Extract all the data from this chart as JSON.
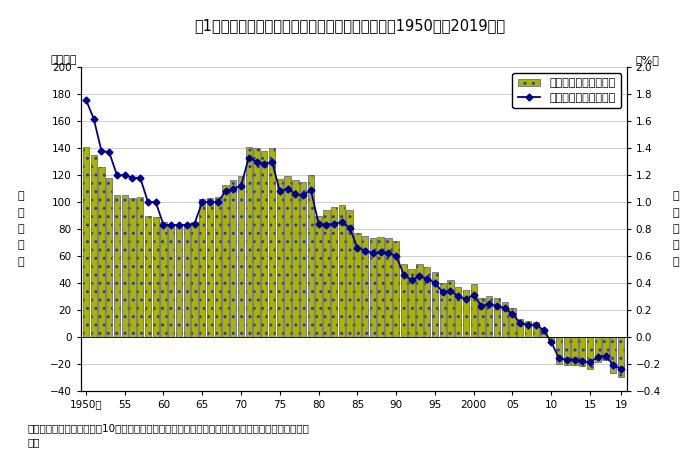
{
  "title": "図1　総人口の人口増加数及び人口増減率の推移（1950年～2019年）",
  "years": [
    1950,
    1951,
    1952,
    1953,
    1954,
    1955,
    1956,
    1957,
    1958,
    1959,
    1960,
    1961,
    1962,
    1963,
    1964,
    1965,
    1966,
    1967,
    1968,
    1969,
    1970,
    1971,
    1972,
    1973,
    1974,
    1975,
    1976,
    1977,
    1978,
    1979,
    1980,
    1981,
    1982,
    1983,
    1984,
    1985,
    1986,
    1987,
    1988,
    1989,
    1990,
    1991,
    1992,
    1993,
    1994,
    1995,
    1996,
    1997,
    1998,
    1999,
    2000,
    2001,
    2002,
    2003,
    2004,
    2005,
    2006,
    2007,
    2008,
    2009,
    2010,
    2011,
    2012,
    2013,
    2014,
    2015,
    2016,
    2017,
    2018,
    2019
  ],
  "bar_values": [
    141,
    135,
    126,
    118,
    105,
    105,
    103,
    104,
    90,
    89,
    85,
    84,
    84,
    84,
    85,
    102,
    103,
    104,
    113,
    116,
    119,
    141,
    140,
    138,
    140,
    117,
    119,
    116,
    115,
    120,
    90,
    94,
    96,
    98,
    94,
    77,
    75,
    73,
    74,
    73,
    71,
    54,
    50,
    54,
    52,
    48,
    40,
    42,
    37,
    35,
    39,
    29,
    30,
    29,
    26,
    21,
    13,
    12,
    11,
    6,
    -5,
    -20,
    -21,
    -21,
    -22,
    -24,
    -19,
    -17,
    -27,
    -30
  ],
  "line_values": [
    1.76,
    1.62,
    1.38,
    1.37,
    1.2,
    1.2,
    1.18,
    1.18,
    1.0,
    1.0,
    0.83,
    0.83,
    0.83,
    0.83,
    0.84,
    1.0,
    1.0,
    1.0,
    1.08,
    1.1,
    1.12,
    1.33,
    1.3,
    1.28,
    1.3,
    1.08,
    1.1,
    1.06,
    1.05,
    1.09,
    0.84,
    0.83,
    0.84,
    0.85,
    0.81,
    0.66,
    0.64,
    0.62,
    0.63,
    0.62,
    0.6,
    0.46,
    0.42,
    0.45,
    0.43,
    0.4,
    0.33,
    0.34,
    0.3,
    0.28,
    0.31,
    0.23,
    0.24,
    0.23,
    0.21,
    0.17,
    0.1,
    0.09,
    0.09,
    0.05,
    -0.04,
    -0.16,
    -0.17,
    -0.17,
    -0.18,
    -0.19,
    -0.15,
    -0.14,
    -0.21,
    -0.24
  ],
  "bar_facecolor": "#a8b400",
  "bar_edgecolor": "#3a3a8c",
  "line_color": "#00008c",
  "line_marker": "D",
  "line_marker_size": 3.5,
  "unit_left": "（万人）",
  "unit_right": "（%）",
  "ylabel_left": "人\n口\n増\n減\n数",
  "ylabel_right": "人\n口\n増\n減\n率",
  "ylim_left": [
    -40,
    200
  ],
  "ylim_right": [
    -0.4,
    2.0
  ],
  "yticks_left": [
    -40,
    -20,
    0,
    20,
    40,
    60,
    80,
    100,
    120,
    140,
    160,
    180,
    200
  ],
  "yticks_right": [
    -0.4,
    -0.2,
    0.0,
    0.2,
    0.4,
    0.6,
    0.8,
    1.0,
    1.2,
    1.4,
    1.6,
    1.8,
    2.0
  ],
  "xtick_labels": [
    "1950年",
    "55",
    "60",
    "65",
    "70",
    "75",
    "80",
    "85",
    "90",
    "95",
    "2000",
    "05",
    "10",
    "15",
    "19"
  ],
  "xtick_positions": [
    1950,
    1955,
    1960,
    1965,
    1970,
    1975,
    1980,
    1985,
    1990,
    1995,
    2000,
    2005,
    2010,
    2015,
    2019
  ],
  "legend_bar": "人口増減数（左目盛）",
  "legend_line": "人口増減率（右目盛）",
  "note": "注）　人口増減率は，前年10月から当年９月までの人口増減数を前年人口（期首人口）で除したも\nの。",
  "title_fontsize": 10.5,
  "axis_fontsize": 8,
  "tick_fontsize": 7.5,
  "note_fontsize": 7.5,
  "bg_color": "#ffffff",
  "grid_color": "#c8c8c8",
  "xlim": [
    1949.3,
    2019.7
  ]
}
